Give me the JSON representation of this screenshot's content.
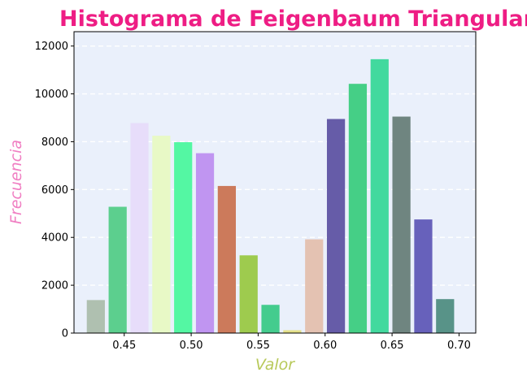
{
  "chart_data": {
    "type": "bar",
    "title": "Histograma de Feigenbaum Triangular",
    "xlabel": "Valor",
    "ylabel": "Frecuencia",
    "xlim": [
      0.4125,
      0.7125
    ],
    "ylim": [
      0,
      12600
    ],
    "xticks": [
      0.45,
      0.5,
      0.55,
      0.6,
      0.65,
      0.7
    ],
    "xtick_labels": [
      "0.45",
      "0.50",
      "0.55",
      "0.60",
      "0.65",
      "0.70"
    ],
    "yticks": [
      0,
      2000,
      4000,
      6000,
      8000,
      10000,
      12000
    ],
    "ytick_labels": [
      "0",
      "2000",
      "4000",
      "6000",
      "8000",
      "10000",
      "12000"
    ],
    "grid": "y-dashed",
    "bin_width": 0.0163,
    "bar_width": 0.0135,
    "x": [
      0.4288,
      0.4451,
      0.4614,
      0.4777,
      0.494,
      0.5103,
      0.5266,
      0.5429,
      0.5592,
      0.5755,
      0.5918,
      0.6081,
      0.6244,
      0.6407,
      0.657,
      0.6733,
      0.6896
    ],
    "values": [
      1380,
      5280,
      8780,
      8250,
      7980,
      7520,
      6150,
      3250,
      1180,
      120,
      3920,
      8950,
      10420,
      11450,
      9050,
      4750,
      1420
    ],
    "bar_colors": [
      "#afc0b0",
      "#5ccf8e",
      "#e7ddfa",
      "#e8f9c6",
      "#54f7a3",
      "#c095f1",
      "#cc7a5b",
      "#9ecb4e",
      "#44cc8e",
      "#e4e08a",
      "#e4c2b2",
      "#665ca8",
      "#45cf86",
      "#42d99e",
      "#6f8580",
      "#6761bb",
      "#589388"
    ],
    "title_color": "#ee1d84",
    "xlabel_color": "#b8c95a",
    "ylabel_color": "#f07ec2",
    "plot_background": "#eaf0fb"
  }
}
